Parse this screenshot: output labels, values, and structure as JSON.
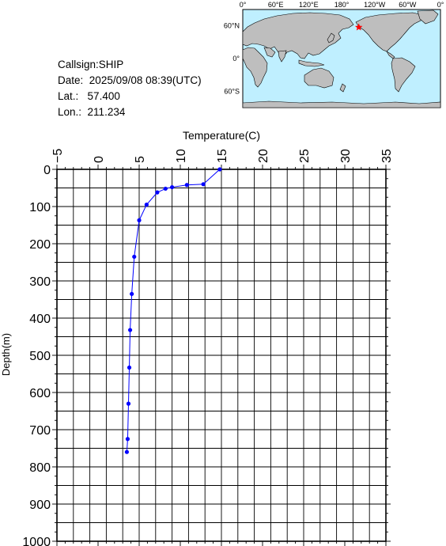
{
  "station": {
    "callsign_label": "Callsign:",
    "callsign": "SHIP",
    "date_label": "Date:",
    "date": "2025/09/08 08:39(UTC)",
    "lat_label": "Lat.:",
    "lat": "57.400",
    "lon_label": "Lon.:",
    "lon": "211.234"
  },
  "map": {
    "top_labels": [
      "0°",
      "60°E",
      "120°E",
      "180°",
      "120°W",
      "60°W",
      "0°"
    ],
    "left_labels": [
      "60°N",
      "0°",
      "60°S"
    ],
    "ocean_color": "#bfefff",
    "land_color": "#bebebe",
    "marker": {
      "lon": 211.234,
      "lat": 57.4,
      "color": "#ff0000",
      "icon": "star-icon"
    }
  },
  "chart_data": {
    "type": "line",
    "xlabel": "Temperature(C)",
    "ylabel": "Depth(m)",
    "xlim": [
      -5,
      35
    ],
    "ylim": [
      1000,
      0
    ],
    "x_ticks": [
      "−5",
      "0",
      "5",
      "10",
      "15",
      "20",
      "25",
      "30",
      "35"
    ],
    "y_ticks": [
      "0",
      "100",
      "200",
      "300",
      "400",
      "500",
      "600",
      "700",
      "800",
      "900",
      "1000"
    ],
    "grid": true,
    "line_color": "#0000ff",
    "series": [
      {
        "points": [
          {
            "temp": 14.8,
            "depth": 0
          },
          {
            "temp": 12.8,
            "depth": 40
          },
          {
            "temp": 10.8,
            "depth": 42
          },
          {
            "temp": 9.0,
            "depth": 48
          },
          {
            "temp": 8.2,
            "depth": 52
          },
          {
            "temp": 7.2,
            "depth": 62
          },
          {
            "temp": 5.9,
            "depth": 95
          },
          {
            "temp": 5.0,
            "depth": 137
          },
          {
            "temp": 4.4,
            "depth": 235
          },
          {
            "temp": 4.1,
            "depth": 335
          },
          {
            "temp": 3.9,
            "depth": 432
          },
          {
            "temp": 3.8,
            "depth": 533
          },
          {
            "temp": 3.7,
            "depth": 630
          },
          {
            "temp": 3.6,
            "depth": 725
          },
          {
            "temp": 3.5,
            "depth": 760
          }
        ]
      }
    ]
  }
}
